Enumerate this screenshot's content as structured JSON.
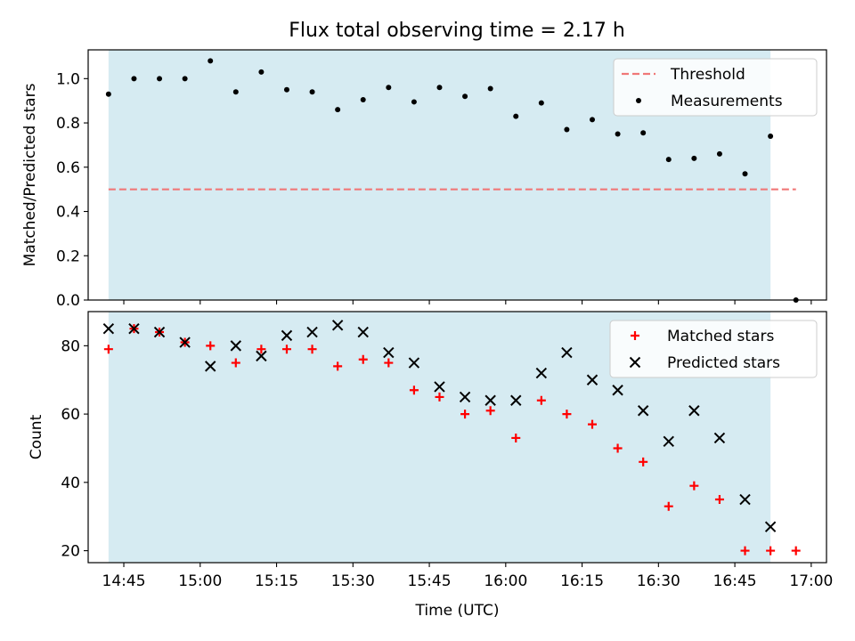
{
  "title": "Flux total observing time = 2.17 h",
  "chart_data": [
    {
      "type": "scatter",
      "ylabel": "Matched/Predicted stars",
      "xlabel": "",
      "xlim": [
        "14:38",
        "17:03"
      ],
      "ylim": [
        0,
        1.13
      ],
      "yticks": [
        "0.0",
        "0.2",
        "0.4",
        "0.6",
        "0.8",
        "1.0"
      ],
      "xticks": [
        "14:45",
        "15:00",
        "15:15",
        "15:30",
        "15:45",
        "16:00",
        "16:15",
        "16:30",
        "16:45",
        "17:00"
      ],
      "shaded_span": [
        "14:42",
        "16:52"
      ],
      "threshold": {
        "label": "Threshold",
        "value": 0.5,
        "x_range": [
          "14:42",
          "16:57"
        ],
        "color": "#f07878"
      },
      "series": [
        {
          "name": "Measurements",
          "color": "#000000",
          "points": [
            [
              "14:42",
              0.93
            ],
            [
              "14:47",
              1.0
            ],
            [
              "14:52",
              1.0
            ],
            [
              "14:57",
              1.0
            ],
            [
              "15:02",
              1.08
            ],
            [
              "15:07",
              0.94
            ],
            [
              "15:12",
              1.03
            ],
            [
              "15:17",
              0.95
            ],
            [
              "15:22",
              0.94
            ],
            [
              "15:27",
              0.86
            ],
            [
              "15:32",
              0.905
            ],
            [
              "15:37",
              0.96
            ],
            [
              "15:42",
              0.895
            ],
            [
              "15:47",
              0.96
            ],
            [
              "15:52",
              0.92
            ],
            [
              "15:57",
              0.955
            ],
            [
              "16:02",
              0.83
            ],
            [
              "16:07",
              0.89
            ],
            [
              "16:12",
              0.77
            ],
            [
              "16:17",
              0.815
            ],
            [
              "16:22",
              0.75
            ],
            [
              "16:27",
              0.755
            ],
            [
              "16:32",
              0.635
            ],
            [
              "16:37",
              0.64
            ],
            [
              "16:42",
              0.66
            ],
            [
              "16:47",
              0.57
            ],
            [
              "16:52",
              0.74
            ],
            [
              "16:57",
              0.0
            ]
          ]
        }
      ],
      "legend": {
        "placement": "top-right",
        "entries": [
          "Threshold",
          "Measurements"
        ]
      }
    },
    {
      "type": "scatter",
      "ylabel": "Count",
      "xlabel": "Time (UTC)",
      "xlim": [
        "14:38",
        "17:03"
      ],
      "ylim": [
        16.5,
        90
      ],
      "yticks": [
        "20",
        "40",
        "60",
        "80"
      ],
      "xticks": [
        "14:45",
        "15:00",
        "15:15",
        "15:30",
        "15:45",
        "16:00",
        "16:15",
        "16:30",
        "16:45",
        "17:00"
      ],
      "shaded_span": [
        "14:42",
        "16:52"
      ],
      "series": [
        {
          "name": "Matched stars",
          "color": "#ff0000",
          "marker": "plus",
          "points": [
            [
              "14:42",
              79
            ],
            [
              "14:47",
              85
            ],
            [
              "14:52",
              84
            ],
            [
              "14:57",
              81
            ],
            [
              "15:02",
              80
            ],
            [
              "15:07",
              75
            ],
            [
              "15:12",
              79
            ],
            [
              "15:17",
              79
            ],
            [
              "15:22",
              79
            ],
            [
              "15:27",
              74
            ],
            [
              "15:32",
              76
            ],
            [
              "15:37",
              75
            ],
            [
              "15:42",
              67
            ],
            [
              "15:47",
              65
            ],
            [
              "15:52",
              60
            ],
            [
              "15:57",
              61
            ],
            [
              "16:02",
              53
            ],
            [
              "16:07",
              64
            ],
            [
              "16:12",
              60
            ],
            [
              "16:17",
              57
            ],
            [
              "16:22",
              50
            ],
            [
              "16:27",
              46
            ],
            [
              "16:32",
              33
            ],
            [
              "16:37",
              39
            ],
            [
              "16:42",
              35
            ],
            [
              "16:47",
              20
            ],
            [
              "16:52",
              20
            ],
            [
              "16:57",
              20
            ]
          ]
        },
        {
          "name": "Predicted stars",
          "color": "#000000",
          "marker": "x",
          "points": [
            [
              "14:42",
              85
            ],
            [
              "14:47",
              85
            ],
            [
              "14:52",
              84
            ],
            [
              "14:57",
              81
            ],
            [
              "15:02",
              74
            ],
            [
              "15:07",
              80
            ],
            [
              "15:12",
              77
            ],
            [
              "15:17",
              83
            ],
            [
              "15:22",
              84
            ],
            [
              "15:27",
              86
            ],
            [
              "15:32",
              84
            ],
            [
              "15:37",
              78
            ],
            [
              "15:42",
              75
            ],
            [
              "15:47",
              68
            ],
            [
              "15:52",
              65
            ],
            [
              "15:57",
              64
            ],
            [
              "16:02",
              64
            ],
            [
              "16:07",
              72
            ],
            [
              "16:12",
              78
            ],
            [
              "16:17",
              70
            ],
            [
              "16:22",
              67
            ],
            [
              "16:27",
              61
            ],
            [
              "16:32",
              52
            ],
            [
              "16:37",
              61
            ],
            [
              "16:42",
              53
            ],
            [
              "16:47",
              35
            ],
            [
              "16:52",
              27
            ]
          ]
        }
      ],
      "legend": {
        "placement": "top-right",
        "entries": [
          "Matched stars",
          "Predicted stars"
        ]
      }
    }
  ],
  "colors": {
    "span_fill": "#add8e6",
    "axis": "#000000"
  }
}
